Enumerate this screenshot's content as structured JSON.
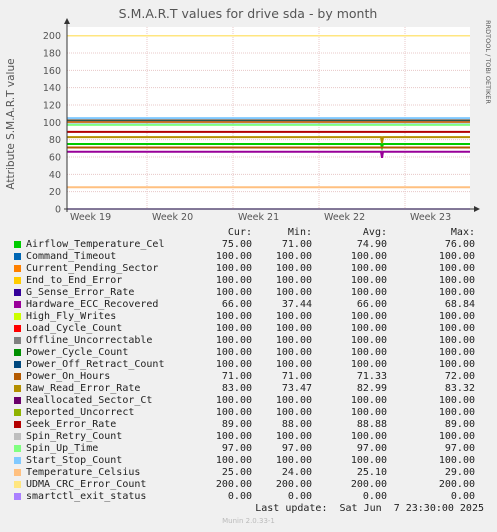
{
  "chart_data": {
    "type": "line",
    "title": "S.M.A.R.T values for drive sda - by month",
    "ylabel": "Attribute S.M.A.R.T value",
    "ylim": [
      0,
      210
    ],
    "y_ticks": [
      0,
      20,
      40,
      60,
      80,
      100,
      120,
      140,
      160,
      180,
      200
    ],
    "x_ticks": [
      "Week 19",
      "Week 20",
      "Week 21",
      "Week 22",
      "Week 23"
    ],
    "side_label": "RRDTOOL / TOBI OETIKER",
    "grid": true,
    "legend_headers": {
      "cur": "Cur:",
      "min": "Min:",
      "avg": "Avg:",
      "max": "Max:"
    },
    "series": [
      {
        "name": "Airflow_Temperature_Cel",
        "color": "#00cc00",
        "cur": "75.00",
        "min": "71.00",
        "avg": "74.90",
        "max": "76.00",
        "level": 75
      },
      {
        "name": "Command_Timeout",
        "color": "#0066b3",
        "cur": "100.00",
        "min": "100.00",
        "avg": "100.00",
        "max": "100.00",
        "level": 100
      },
      {
        "name": "Current_Pending_Sector",
        "color": "#ff8000",
        "cur": "100.00",
        "min": "100.00",
        "avg": "100.00",
        "max": "100.00",
        "level": 100
      },
      {
        "name": "End_to_End_Error",
        "color": "#ffcc00",
        "cur": "100.00",
        "min": "100.00",
        "avg": "100.00",
        "max": "100.00",
        "level": 100
      },
      {
        "name": "G_Sense_Error_Rate",
        "color": "#330099",
        "cur": "100.00",
        "min": "100.00",
        "avg": "100.00",
        "max": "100.00",
        "level": 100
      },
      {
        "name": "Hardware_ECC_Recovered",
        "color": "#990099",
        "cur": "66.00",
        "min": "37.44",
        "avg": "66.00",
        "max": "68.84",
        "level": 66
      },
      {
        "name": "High_Fly_Writes",
        "color": "#ccff00",
        "cur": "100.00",
        "min": "100.00",
        "avg": "100.00",
        "max": "100.00",
        "level": 100
      },
      {
        "name": "Load_Cycle_Count",
        "color": "#ff0000",
        "cur": "100.00",
        "min": "100.00",
        "avg": "100.00",
        "max": "100.00",
        "level": 100
      },
      {
        "name": "Offline_Uncorrectable",
        "color": "#808080",
        "cur": "100.00",
        "min": "100.00",
        "avg": "100.00",
        "max": "100.00",
        "level": 100
      },
      {
        "name": "Power_Cycle_Count",
        "color": "#008f00",
        "cur": "100.00",
        "min": "100.00",
        "avg": "100.00",
        "max": "100.00",
        "level": 100
      },
      {
        "name": "Power_Off_Retract_Count",
        "color": "#00487d",
        "cur": "100.00",
        "min": "100.00",
        "avg": "100.00",
        "max": "100.00",
        "level": 100
      },
      {
        "name": "Power_On_Hours",
        "color": "#b35a00",
        "cur": "71.00",
        "min": "71.00",
        "avg": "71.33",
        "max": "72.00",
        "level": 71
      },
      {
        "name": "Raw_Read_Error_Rate",
        "color": "#b38f00",
        "cur": "83.00",
        "min": "73.47",
        "avg": "82.99",
        "max": "83.32",
        "level": 83
      },
      {
        "name": "Reallocated_Sector_Ct",
        "color": "#6b006b",
        "cur": "100.00",
        "min": "100.00",
        "avg": "100.00",
        "max": "100.00",
        "level": 100
      },
      {
        "name": "Reported_Uncorrect",
        "color": "#8fb300",
        "cur": "100.00",
        "min": "100.00",
        "avg": "100.00",
        "max": "100.00",
        "level": 100
      },
      {
        "name": "Seek_Error_Rate",
        "color": "#b30000",
        "cur": "89.00",
        "min": "88.00",
        "avg": "88.88",
        "max": "89.00",
        "level": 89
      },
      {
        "name": "Spin_Retry_Count",
        "color": "#bebebe",
        "cur": "100.00",
        "min": "100.00",
        "avg": "100.00",
        "max": "100.00",
        "level": 100
      },
      {
        "name": "Spin_Up_Time",
        "color": "#80ff80",
        "cur": "97.00",
        "min": "97.00",
        "avg": "97.00",
        "max": "97.00",
        "level": 97
      },
      {
        "name": "Start_Stop_Count",
        "color": "#80c9ff",
        "cur": "100.00",
        "min": "100.00",
        "avg": "100.00",
        "max": "100.00",
        "level": 100
      },
      {
        "name": "Temperature_Celsius",
        "color": "#ffc080",
        "cur": "25.00",
        "min": "24.00",
        "avg": "25.10",
        "max": "29.00",
        "level": 25
      },
      {
        "name": "UDMA_CRC_Error_Count",
        "color": "#ffe680",
        "cur": "200.00",
        "min": "200.00",
        "avg": "200.00",
        "max": "200.00",
        "level": 200
      },
      {
        "name": "smartctl_exit_status",
        "color": "#aa80ff",
        "cur": "0.00",
        "min": "0.00",
        "avg": "0.00",
        "max": "0.00",
        "level": 0
      }
    ]
  },
  "footer": {
    "last_update": "Last update:  Sat Jun  7 23:30:00 2025",
    "munin_version": "Munin 2.0.33-1"
  }
}
